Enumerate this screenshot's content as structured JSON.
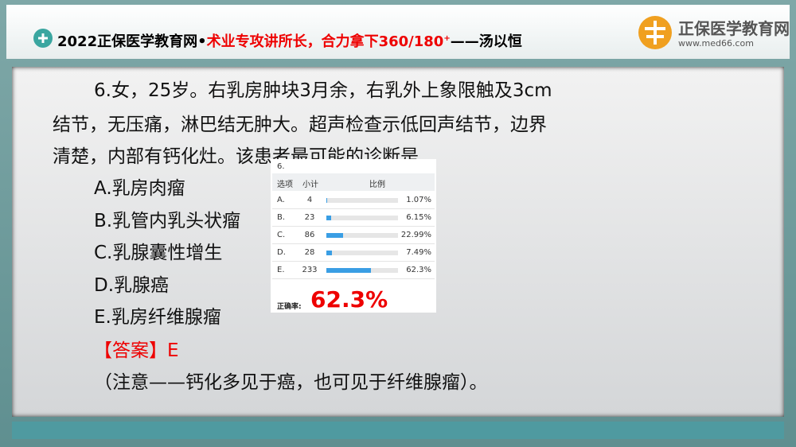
{
  "header": {
    "title_prefix": "2022正保医学教育网•",
    "title_red": "术业专攻讲所长，合力拿下360/180",
    "title_sup": "+",
    "title_suffix": "——汤以恒",
    "logo_name": "正保医学教育网",
    "logo_url": "www.med66.com"
  },
  "question": {
    "lines": [
      "6.女，25岁。右乳房肿块3月余，右乳外上象限触及3cm",
      "结节，无压痛，淋巴结无肿大。超声检查示低回声结节，边界",
      "清楚，内部有钙化灶。该患者最可能的诊断是"
    ],
    "options": [
      "A.乳房肉瘤",
      "B.乳管内乳头状瘤",
      "C.乳腺囊性增生",
      "D.乳腺癌",
      "E.乳房纤维腺瘤"
    ],
    "answer": "【答案】E",
    "note": "（注意——钙化多见于癌，也可见于纤维腺瘤）。"
  },
  "table": {
    "title": "6.",
    "columns": [
      "选项",
      "小计",
      "比例"
    ],
    "rows": [
      {
        "option": "A.",
        "count": 4,
        "ratio": 1.07,
        "ratio_label": "1.07%"
      },
      {
        "option": "B.",
        "count": 23,
        "ratio": 6.15,
        "ratio_label": "6.15%"
      },
      {
        "option": "C.",
        "count": 86,
        "ratio": 22.99,
        "ratio_label": "22.99%"
      },
      {
        "option": "D.",
        "count": 28,
        "ratio": 7.49,
        "ratio_label": "7.49%"
      },
      {
        "option": "E.",
        "count": 233,
        "ratio": 62.3,
        "ratio_label": "62.3%"
      }
    ],
    "correct_label": "正确率:",
    "correct_rate": 62.3,
    "correct_rate_label": "62.3%"
  }
}
